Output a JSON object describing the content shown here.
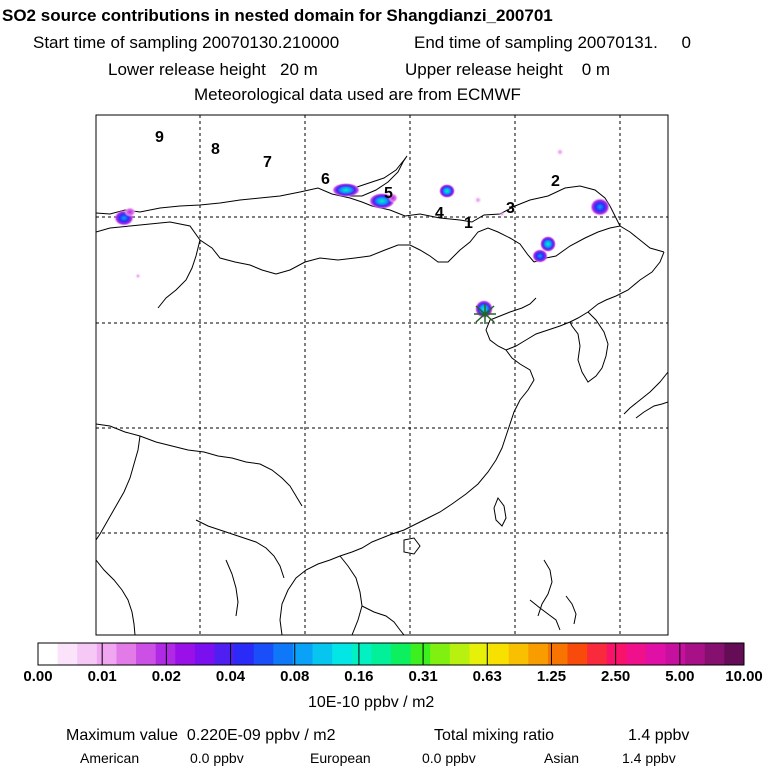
{
  "header": {
    "title": "SO2 source contributions in nested domain for Shangdianzi_200701",
    "start_time": "Start time of sampling 20070130.210000",
    "end_time": "End time of sampling 20070131.     0",
    "lower_release": "Lower release height   20 m",
    "upper_release": "Upper release height    0 m",
    "met_data": "Meteorological data used are from ECMWF"
  },
  "map": {
    "region_labels": [
      "9",
      "8",
      "7",
      "6",
      "5",
      "4",
      "1",
      "3",
      "2"
    ],
    "station_marker": "Shangdianzi"
  },
  "colorbar": {
    "tick_labels": [
      "0.00",
      "0.01",
      "0.02",
      "0.04",
      "0.08",
      "0.16",
      "0.31",
      "0.63",
      "1.25",
      "2.50",
      "5.00",
      "10.00"
    ],
    "units": "10E-10 ppbv / m2",
    "colors": [
      "#ffffff",
      "#fbe4fb",
      "#f6c8f6",
      "#f0a6f0",
      "#e27ae8",
      "#cc4fe6",
      "#b02ae6",
      "#9a10e8",
      "#7a10f0",
      "#4e1ff0",
      "#2b2bf8",
      "#1a4ef8",
      "#0f78f8",
      "#0aa2f8",
      "#06c6f0",
      "#02e6e6",
      "#02f0c2",
      "#02f09a",
      "#0cf060",
      "#3cf020",
      "#80f010",
      "#b8f010",
      "#e6f008",
      "#f8e000",
      "#f8c000",
      "#f89c00",
      "#f87400",
      "#f84a0a",
      "#f82a3c",
      "#f8126a",
      "#f0108c",
      "#e010a6",
      "#c8109e",
      "#a81088",
      "#861070",
      "#640c56"
    ]
  },
  "footer": {
    "max_label": "Maximum value  0.220E-09 ppbv / m2",
    "total_label": "Total mixing ratio",
    "total_value": "1.4 ppbv",
    "american_label": "American",
    "american_value": "0.0 ppbv",
    "european_label": "European",
    "european_value": "0.0 ppbv",
    "asian_label": "Asian",
    "asian_value": "1.4 ppbv"
  }
}
